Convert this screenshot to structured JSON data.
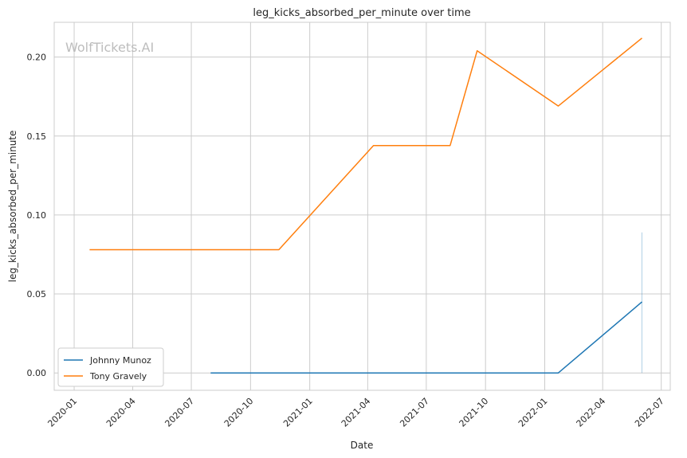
{
  "chart_data": {
    "type": "line",
    "title": "leg_kicks_absorbed_per_minute over time",
    "xlabel": "Date",
    "ylabel": "leg_kicks_absorbed_per_minute",
    "watermark": "WolfTickets.AI",
    "xlim": [
      "2019-12-01",
      "2022-07-15"
    ],
    "ylim": [
      -0.011,
      0.222
    ],
    "x_ticks": [
      "2020-01",
      "2020-04",
      "2020-07",
      "2020-10",
      "2021-01",
      "2021-04",
      "2021-07",
      "2021-10",
      "2022-01",
      "2022-04",
      "2022-07"
    ],
    "y_ticks": [
      0.0,
      0.05,
      0.1,
      0.15,
      0.2
    ],
    "y_tick_labels": [
      "0.00",
      "0.05",
      "0.10",
      "0.15",
      "0.20"
    ],
    "grid": true,
    "legend_position": "lower-left",
    "series": [
      {
        "name": "Johnny Munoz",
        "color": "#1f77b4",
        "points": [
          {
            "x": "2020-07-31",
            "y": 0.0
          },
          {
            "x": "2022-01-22",
            "y": 0.0
          },
          {
            "x": "2022-06-01",
            "y": 0.045
          }
        ]
      },
      {
        "name": "Tony Gravely",
        "color": "#ff7f0e",
        "points": [
          {
            "x": "2020-01-25",
            "y": 0.078
          },
          {
            "x": "2020-11-14",
            "y": 0.078
          },
          {
            "x": "2021-04-10",
            "y": 0.144
          },
          {
            "x": "2021-08-07",
            "y": 0.144
          },
          {
            "x": "2021-09-18",
            "y": 0.204
          },
          {
            "x": "2022-01-22",
            "y": 0.169
          },
          {
            "x": "2022-06-01",
            "y": 0.212
          }
        ]
      }
    ],
    "bands": [
      {
        "x": "2022-06-01",
        "y_low": 0.0,
        "y_high": 0.089,
        "color": "#1f77b4"
      }
    ]
  }
}
